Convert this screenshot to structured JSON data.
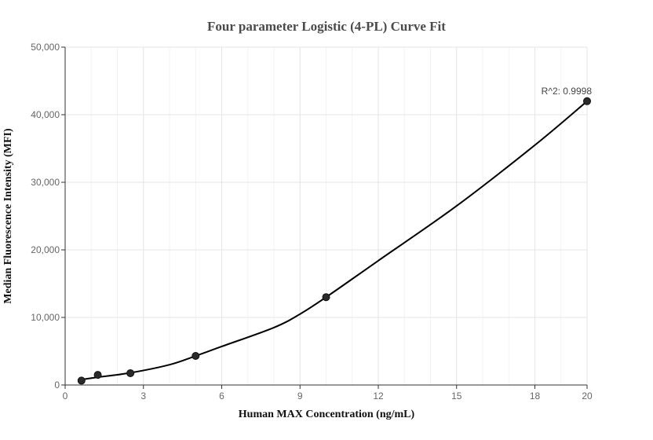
{
  "chart_data": {
    "type": "scatter",
    "title": "Four parameter Logistic (4-PL) Curve Fit",
    "xlabel": "Human MAX Concentration (ng/mL)",
    "ylabel": "Median Fluorescence Intensity (MFI)",
    "xlim": [
      0,
      20
    ],
    "ylim": [
      0,
      50000
    ],
    "x_ticks": [
      0,
      3,
      6,
      9,
      12,
      15,
      18,
      20
    ],
    "x_tick_labels": [
      "0",
      "3",
      "6",
      "9",
      "12",
      "15",
      "18",
      "20"
    ],
    "y_ticks": [
      0,
      10000,
      20000,
      30000,
      40000,
      50000
    ],
    "y_tick_labels": [
      "0",
      "10,000",
      "20,000",
      "30,000",
      "40,000",
      "50,000"
    ],
    "grid": true,
    "annotation": "R^2: 0.9998",
    "series": [
      {
        "x": [
          0.625,
          1.25,
          2.5,
          5,
          10,
          20
        ],
        "y": [
          650,
          1500,
          1750,
          4300,
          13000,
          42000
        ]
      }
    ],
    "fit_curve": {
      "x": [
        0.625,
        1.25,
        2.5,
        4,
        5,
        6,
        8,
        9,
        10,
        12,
        15,
        18,
        20
      ],
      "y": [
        800,
        1150,
        1800,
        3000,
        4300,
        5700,
        8500,
        10500,
        13000,
        18400,
        26500,
        35500,
        42000
      ]
    },
    "colors": {
      "points": "#2a2a2a",
      "curve": "#000000",
      "grid": "#e6e6e6"
    }
  }
}
